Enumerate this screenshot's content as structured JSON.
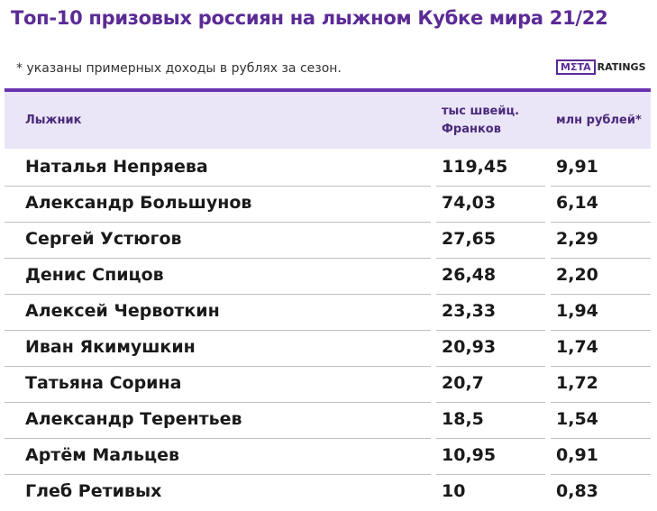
{
  "header": {
    "title": "Топ-10 призовых россиян на лыжном Кубке мира 21/22",
    "note": "* указаны примерных доходы в рублях за сезон.",
    "logo": {
      "left": "MΣTA",
      "right": "RATINGS"
    }
  },
  "table": {
    "columns": [
      [
        "Лыжник"
      ],
      [
        "тыс швейц.",
        "Франков"
      ],
      [
        "млн рублей*"
      ]
    ],
    "rows": [
      [
        "Наталья Непряева",
        "119,45",
        "9,91"
      ],
      [
        "Александр Большунов",
        "74,03",
        "6,14"
      ],
      [
        "Сергей Устюгов",
        "27,65",
        "2,29"
      ],
      [
        "Денис Спицов",
        "26,48",
        "2,20"
      ],
      [
        "Алексей Червоткин",
        "23,33",
        "1,94"
      ],
      [
        "Иван Якимушкин",
        "20,93",
        "1,74"
      ],
      [
        "Татьяна Сорина",
        "20,7",
        "1,72"
      ],
      [
        "Александр Терентьев",
        "18,5",
        "1,54"
      ],
      [
        "Артём Мальцев",
        "10,95",
        "0,91"
      ],
      [
        "Глеб Ретивых",
        "10",
        "0,83"
      ]
    ]
  }
}
